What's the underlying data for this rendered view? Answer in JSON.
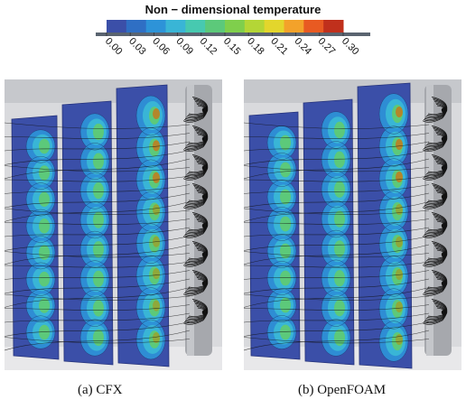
{
  "colorbar": {
    "title": "Non − dimensional temperature",
    "ticks": [
      "0.00",
      "0.03",
      "0.06",
      "0.09",
      "0.12",
      "0.15",
      "0.18",
      "0.21",
      "0.24",
      "0.27",
      "0.30"
    ],
    "colors": [
      "#3b4fa8",
      "#2f6fc4",
      "#2d93d8",
      "#39b5d6",
      "#47c9b0",
      "#5cc97a",
      "#7fcf4c",
      "#b4d636",
      "#e3d62c",
      "#f3a22a",
      "#e85a22",
      "#c0301c"
    ]
  },
  "panels": [
    {
      "caption": "(a)  CFX"
    },
    {
      "caption": "(b)  OpenFOAM"
    }
  ]
}
